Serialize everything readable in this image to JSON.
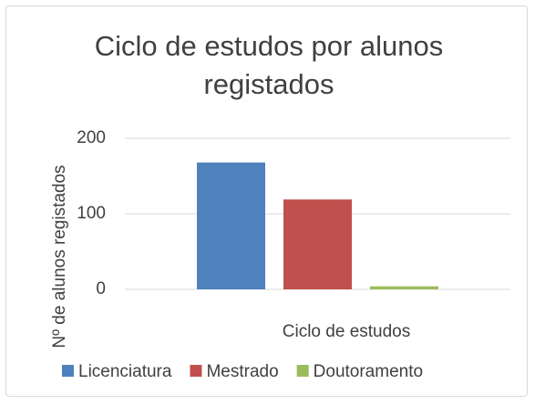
{
  "chart_data": {
    "type": "bar",
    "title": "Ciclo de estudos por alunos registados",
    "x_label": "Ciclo de estudos",
    "y_label": "Nº de alunos registados",
    "categories": [
      null
    ],
    "series": [
      {
        "name": "Licenciatura",
        "color": "#4f81bd",
        "values": [
          168
        ]
      },
      {
        "name": "Mestrado",
        "color": "#c0504d",
        "values": [
          119
        ]
      },
      {
        "name": "Doutoramento",
        "color": "#9bbb59",
        "values": [
          4
        ]
      }
    ],
    "ylim": [
      0,
      200
    ],
    "yticks": [
      0,
      100,
      200
    ],
    "grid": true,
    "legend": "bottom"
  }
}
